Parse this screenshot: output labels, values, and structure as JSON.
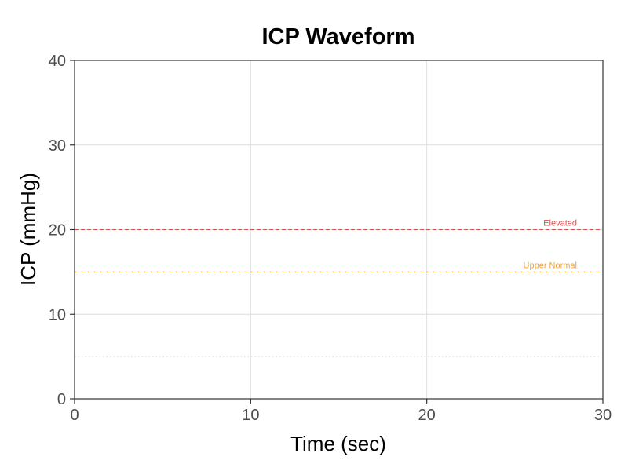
{
  "chart_data": {
    "type": "line",
    "title": "ICP Waveform",
    "xlabel": "Time (sec)",
    "ylabel": "ICP (mmHg)",
    "xlim": [
      0,
      30
    ],
    "ylim": [
      0,
      40
    ],
    "x_ticks": [
      0,
      10,
      20,
      30
    ],
    "y_ticks": [
      0,
      10,
      20,
      30,
      40
    ],
    "grid": true,
    "series": [],
    "reference_lines": [
      {
        "y": 20,
        "label": "Elevated",
        "color": "#d9534f",
        "style": "dashed"
      },
      {
        "y": 15,
        "label": "Upper Normal",
        "color": "#e8a33d",
        "style": "dashed"
      },
      {
        "y": 5,
        "label": "",
        "color": "#d6d6d6",
        "style": "dotted"
      }
    ]
  },
  "colors": {
    "grid": "#dedede",
    "axis": "#333333",
    "tick_label": "#4d4d4d",
    "title": "#000000"
  }
}
